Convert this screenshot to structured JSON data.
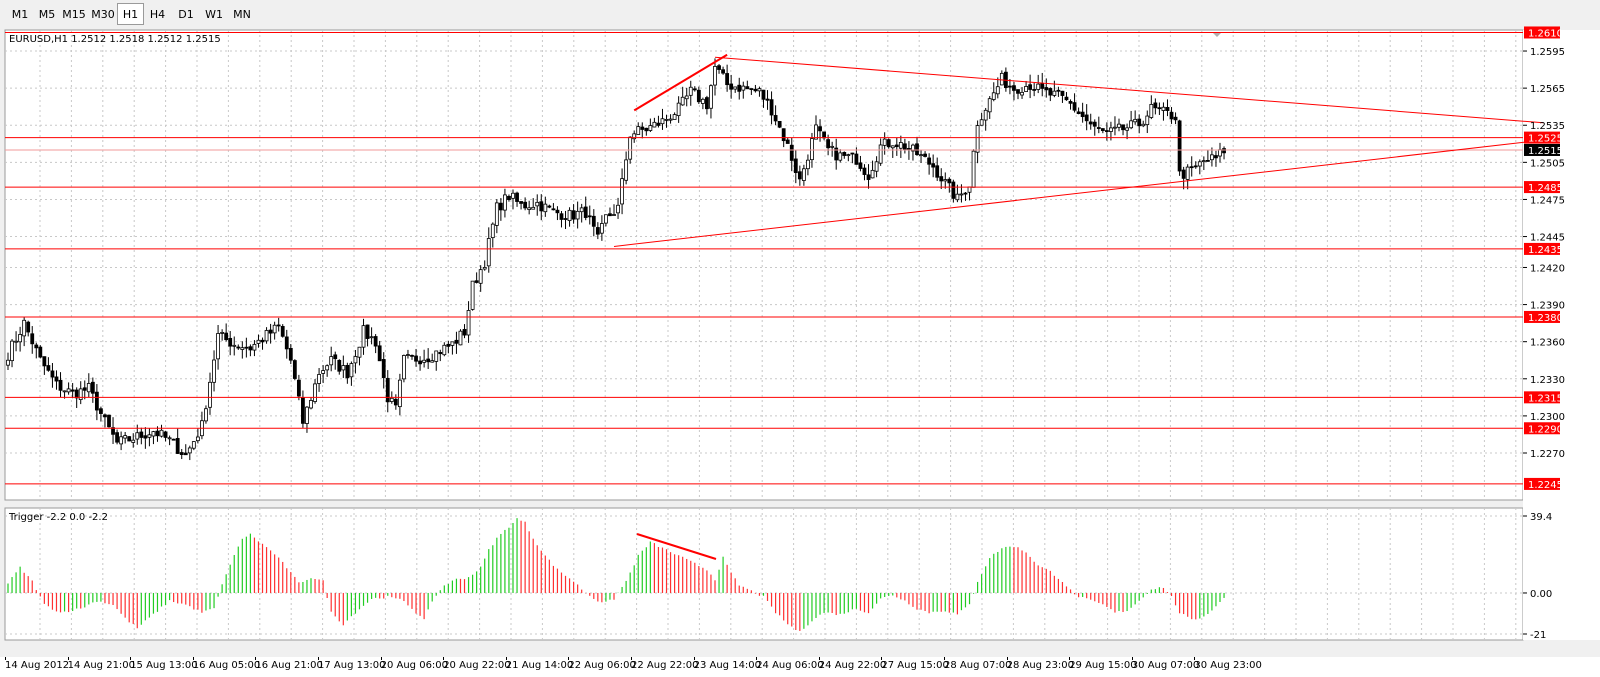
{
  "toolbar": {
    "timeframes": [
      "M1",
      "M5",
      "M15",
      "M30",
      "H1",
      "H4",
      "D1",
      "W1",
      "MN"
    ],
    "active": "H1"
  },
  "colors": {
    "background": "#ffffff",
    "grid": "#c8c8c8",
    "candle": "#000000",
    "level_line": "#ff0000",
    "label_bg": "#ff0000",
    "price_label_bg": "#000000",
    "hist_up": "#22cc22",
    "hist_down": "#ff3030"
  },
  "price_panel": {
    "header": "EURUSD,H1  1.2512 1.2518 1.2512 1.2515",
    "current_price": "1.2515",
    "axis_ticks": [
      "1.2595",
      "1.2565",
      "1.2535",
      "1.2505",
      "1.2475",
      "1.2445",
      "1.2420",
      "1.2390",
      "1.2360",
      "1.2330",
      "1.2300",
      "1.2270"
    ],
    "level_labels": [
      "1.2525",
      "1.2485",
      "1.2435",
      "1.2380",
      "1.2315",
      "1.2290",
      "1.2245"
    ],
    "top_level_label": "1.2610"
  },
  "indicator_panel": {
    "header": "Trigger -2.2 0.0 -2.2",
    "axis_ticks": [
      "39.4",
      "0.00",
      "-21"
    ]
  },
  "time_axis": {
    "labels": [
      "14 Aug 2012",
      "14 Aug 21:00",
      "15 Aug 13:00",
      "16 Aug 05:00",
      "16 Aug 21:00",
      "17 Aug 13:00",
      "20 Aug 06:00",
      "20 Aug 22:00",
      "21 Aug 14:00",
      "22 Aug 06:00",
      "22 Aug 22:00",
      "23 Aug 14:00",
      "24 Aug 06:00",
      "24 Aug 22:00",
      "27 Aug 15:00",
      "28 Aug 07:00",
      "28 Aug 23:00",
      "29 Aug 15:00",
      "30 Aug 07:00",
      "30 Aug 23:00"
    ]
  },
  "chart_data": {
    "type": "candlestick",
    "symbol": "EURUSD",
    "timeframe": "H1",
    "ylim": [
      1.2232,
      1.2612
    ],
    "close_anchors": [
      [
        0,
        1.235
      ],
      [
        4,
        1.2375
      ],
      [
        8,
        1.2345
      ],
      [
        12,
        1.2325
      ],
      [
        16,
        1.2318
      ],
      [
        20,
        1.2322
      ],
      [
        24,
        1.2295
      ],
      [
        27,
        1.2278
      ],
      [
        32,
        1.2283
      ],
      [
        36,
        1.2288
      ],
      [
        40,
        1.228
      ],
      [
        44,
        1.2268
      ],
      [
        48,
        1.2292
      ],
      [
        52,
        1.2365
      ],
      [
        56,
        1.2358
      ],
      [
        60,
        1.2355
      ],
      [
        64,
        1.2365
      ],
      [
        67,
        1.2372
      ],
      [
        70,
        1.2345
      ],
      [
        73,
        1.2295
      ],
      [
        77,
        1.2335
      ],
      [
        80,
        1.2345
      ],
      [
        84,
        1.2335
      ],
      [
        88,
        1.2368
      ],
      [
        91,
        1.236
      ],
      [
        94,
        1.2315
      ],
      [
        96,
        1.2305
      ],
      [
        98,
        1.2345
      ],
      [
        104,
        1.2348
      ],
      [
        110,
        1.2358
      ],
      [
        113,
        1.2368
      ],
      [
        115,
        1.2405
      ],
      [
        118,
        1.2425
      ],
      [
        121,
        1.2468
      ],
      [
        124,
        1.2478
      ],
      [
        127,
        1.247
      ],
      [
        131,
        1.2472
      ],
      [
        135,
        1.2465
      ],
      [
        139,
        1.2462
      ],
      [
        143,
        1.2465
      ],
      [
        146,
        1.2442
      ],
      [
        148,
        1.246
      ],
      [
        151,
        1.2468
      ],
      [
        154,
        1.2528
      ],
      [
        158,
        1.2532
      ],
      [
        162,
        1.2538
      ],
      [
        166,
        1.2548
      ],
      [
        169,
        1.2562
      ],
      [
        173,
        1.2552
      ],
      [
        175,
        1.2582
      ],
      [
        178,
        1.2568
      ],
      [
        182,
        1.2565
      ],
      [
        186,
        1.2562
      ],
      [
        189,
        1.2548
      ],
      [
        193,
        1.2518
      ],
      [
        196,
        1.249
      ],
      [
        200,
        1.2532
      ],
      [
        203,
        1.2515
      ],
      [
        206,
        1.251
      ],
      [
        210,
        1.2508
      ],
      [
        213,
        1.2495
      ],
      [
        216,
        1.2518
      ],
      [
        219,
        1.2522
      ],
      [
        222,
        1.2518
      ],
      [
        225,
        1.2512
      ],
      [
        229,
        1.2502
      ],
      [
        232,
        1.2488
      ],
      [
        235,
        1.2475
      ],
      [
        238,
        1.2488
      ],
      [
        240,
        1.2538
      ],
      [
        243,
        1.2555
      ],
      [
        246,
        1.2572
      ],
      [
        249,
        1.2565
      ],
      [
        253,
        1.2568
      ],
      [
        256,
        1.2562
      ],
      [
        260,
        1.2558
      ],
      [
        263,
        1.2552
      ],
      [
        266,
        1.2542
      ],
      [
        269,
        1.2532
      ],
      [
        272,
        1.2528
      ],
      [
        276,
        1.2532
      ],
      [
        280,
        1.2536
      ],
      [
        283,
        1.2548
      ],
      [
        286,
        1.2545
      ],
      [
        289,
        1.2542
      ],
      [
        290,
        1.2495
      ],
      [
        293,
        1.2498
      ],
      [
        296,
        1.2506
      ],
      [
        299,
        1.2508
      ],
      [
        301,
        1.2515
      ]
    ],
    "horizontal_levels": [
      1.2525,
      1.2485,
      1.2435,
      1.238,
      1.2315,
      1.229,
      1.2245,
      1.2515,
      1.261
    ],
    "trendlines": [
      {
        "from": [
          150,
          1.2437
        ],
        "to": [
          380,
          1.2523
        ]
      },
      {
        "from": [
          175,
          1.259
        ],
        "to": [
          380,
          1.2537
        ]
      },
      {
        "from": [
          155,
          1.2547
        ],
        "to": [
          178,
          1.2592
        ]
      }
    ],
    "indicator": {
      "name": "Trigger",
      "last_values": [
        -2.2,
        0.0,
        -2.2
      ],
      "ylim": [
        -21,
        39.4
      ],
      "anchors": [
        [
          0,
          5
        ],
        [
          3,
          13
        ],
        [
          6,
          6
        ],
        [
          9,
          -6
        ],
        [
          13,
          -10
        ],
        [
          18,
          -8
        ],
        [
          22,
          -4
        ],
        [
          26,
          -6
        ],
        [
          29,
          -13
        ],
        [
          32,
          -18
        ],
        [
          36,
          -11
        ],
        [
          40,
          -4
        ],
        [
          44,
          -6
        ],
        [
          48,
          -10
        ],
        [
          51,
          -8
        ],
        [
          54,
          10
        ],
        [
          58,
          28
        ],
        [
          60,
          30
        ],
        [
          63,
          25
        ],
        [
          66,
          20
        ],
        [
          69,
          13
        ],
        [
          72,
          5
        ],
        [
          75,
          8
        ],
        [
          78,
          6
        ],
        [
          80,
          -10
        ],
        [
          83,
          -16
        ],
        [
          86,
          -10
        ],
        [
          90,
          -3
        ],
        [
          94,
          -2
        ],
        [
          98,
          -4
        ],
        [
          101,
          -10
        ],
        [
          103,
          -14
        ],
        [
          105,
          -4
        ],
        [
          108,
          4
        ],
        [
          111,
          7
        ],
        [
          114,
          8
        ],
        [
          117,
          13
        ],
        [
          119,
          22
        ],
        [
          121,
          28
        ],
        [
          124,
          34
        ],
        [
          126,
          38
        ],
        [
          128,
          36
        ],
        [
          130,
          28
        ],
        [
          133,
          19
        ],
        [
          136,
          12
        ],
        [
          140,
          6
        ],
        [
          143,
          0
        ],
        [
          146,
          -4
        ],
        [
          148,
          -5
        ],
        [
          150,
          -3
        ],
        [
          153,
          6
        ],
        [
          156,
          19
        ],
        [
          159,
          26
        ],
        [
          162,
          23
        ],
        [
          165,
          20
        ],
        [
          168,
          17
        ],
        [
          171,
          14
        ],
        [
          173,
          12
        ],
        [
          175,
          7
        ],
        [
          177,
          18
        ],
        [
          179,
          10
        ],
        [
          181,
          4
        ],
        [
          184,
          1
        ],
        [
          187,
          -2
        ],
        [
          190,
          -10
        ],
        [
          193,
          -16
        ],
        [
          196,
          -20
        ],
        [
          199,
          -14
        ],
        [
          202,
          -10
        ],
        [
          206,
          -11
        ],
        [
          210,
          -8
        ],
        [
          213,
          -10
        ],
        [
          216,
          -3
        ],
        [
          219,
          -1
        ],
        [
          222,
          -4
        ],
        [
          225,
          -8
        ],
        [
          228,
          -10
        ],
        [
          232,
          -9
        ],
        [
          235,
          -11
        ],
        [
          238,
          -6
        ],
        [
          240,
          6
        ],
        [
          243,
          18
        ],
        [
          246,
          23
        ],
        [
          249,
          24
        ],
        [
          252,
          21
        ],
        [
          255,
          14
        ],
        [
          258,
          11
        ],
        [
          261,
          6
        ],
        [
          264,
          -1
        ],
        [
          268,
          -4
        ],
        [
          271,
          -6
        ],
        [
          274,
          -10
        ],
        [
          277,
          -9
        ],
        [
          280,
          -4
        ],
        [
          283,
          2
        ],
        [
          286,
          3
        ],
        [
          288,
          -2
        ],
        [
          290,
          -10
        ],
        [
          293,
          -14
        ],
        [
          296,
          -12
        ],
        [
          299,
          -7
        ],
        [
          301,
          -2.2
        ]
      ]
    }
  }
}
